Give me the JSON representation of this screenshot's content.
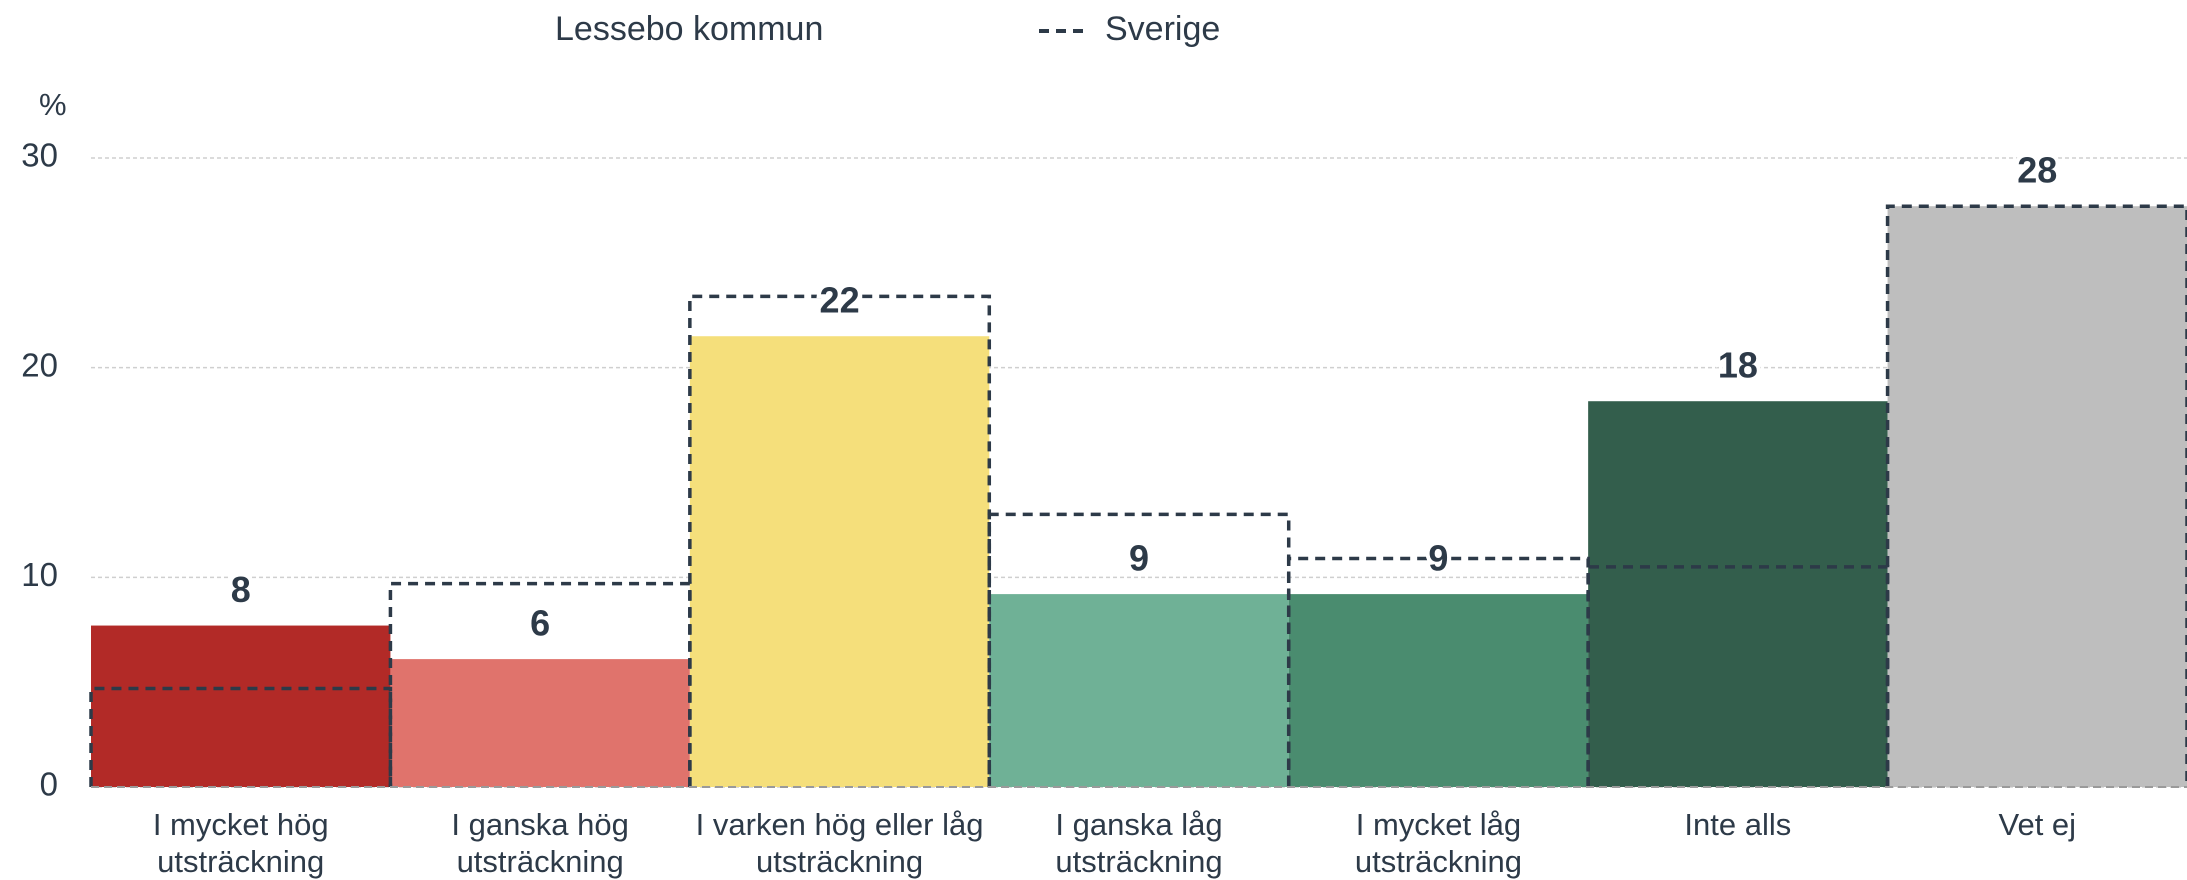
{
  "chart_data": {
    "type": "bar",
    "y_label": "%",
    "categories": [
      "I mycket hög\nutsträckning",
      "I ganska hög\nutsträckning",
      "I varken hög eller låg\nutsträckning",
      "I ganska låg\nutsträckning",
      "I mycket låg\nutsträckning",
      "Inte alls",
      "Vet ej"
    ],
    "series": [
      {
        "name": "Lessebo kommun",
        "colors": [
          "#b22a27",
          "#e0736c",
          "#f5df7b",
          "#6fb196",
          "#4a8c6f",
          "#335e4c",
          "#bebebe"
        ],
        "values": [
          7.7,
          6.1,
          21.5,
          9.2,
          9.2,
          18.4,
          27.7
        ],
        "value_labels": [
          "8",
          "6",
          "22",
          "9",
          "9",
          "18",
          "28"
        ]
      },
      {
        "name": "Sverige",
        "color": "#2d3a48",
        "style": "dashed",
        "values": [
          4.7,
          9.7,
          23.4,
          13.0,
          10.9,
          10.5,
          27.7
        ]
      }
    ],
    "ylim": [
      0,
      30
    ],
    "yticks": [
      0,
      10,
      20,
      30
    ],
    "grid": true
  }
}
